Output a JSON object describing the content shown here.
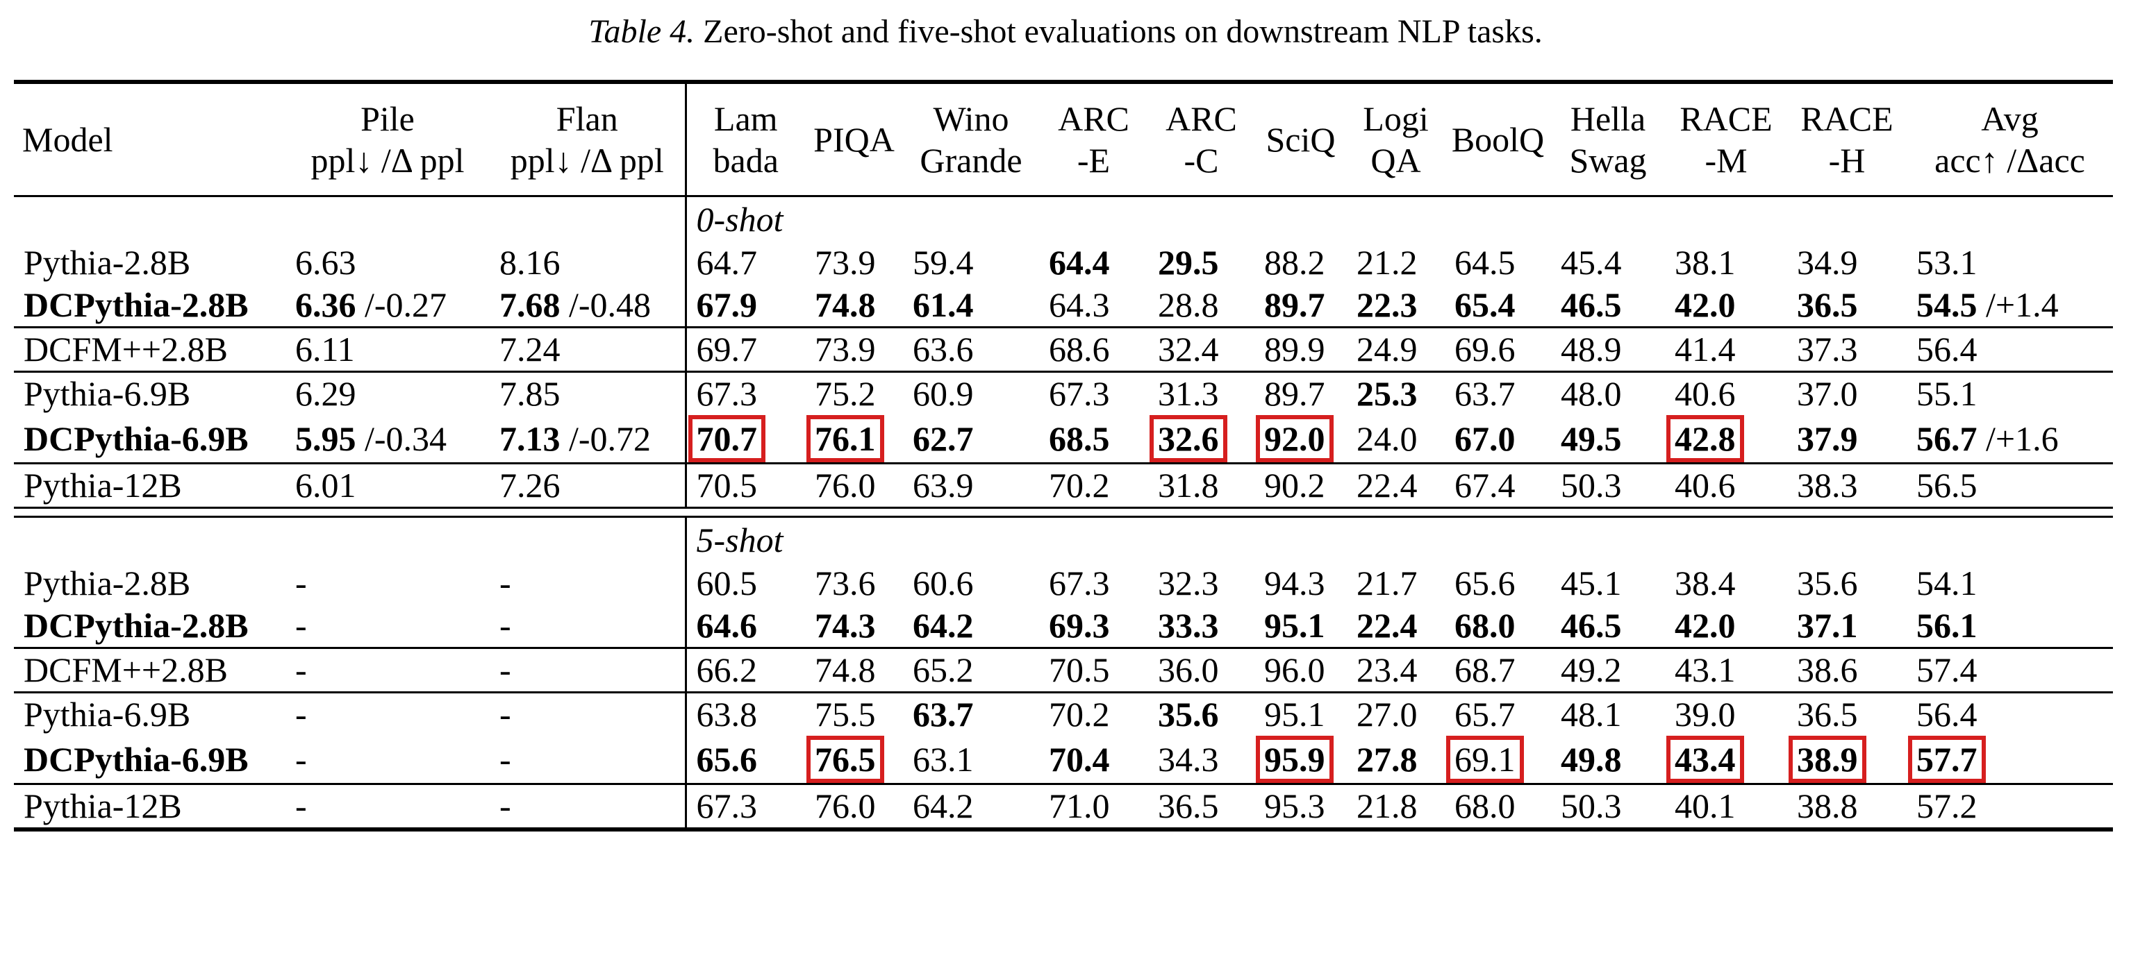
{
  "caption": {
    "label": "Table 4.",
    "text": "Zero-shot and five-shot evaluations on downstream NLP tasks."
  },
  "header": [
    {
      "lines": [
        "Model"
      ]
    },
    {
      "lines": [
        "Pile",
        "ppl↓ /Δ ppl"
      ]
    },
    {
      "lines": [
        "Flan",
        "ppl↓ /Δ ppl"
      ]
    },
    {
      "lines": [
        "Lam",
        "bada"
      ]
    },
    {
      "lines": [
        "PIQA"
      ]
    },
    {
      "lines": [
        "Wino",
        "Grande"
      ]
    },
    {
      "lines": [
        "ARC",
        "-E"
      ]
    },
    {
      "lines": [
        "ARC",
        "-C"
      ]
    },
    {
      "lines": [
        "SciQ"
      ]
    },
    {
      "lines": [
        "Logi",
        "QA"
      ]
    },
    {
      "lines": [
        "BoolQ"
      ]
    },
    {
      "lines": [
        "Hella",
        "Swag"
      ]
    },
    {
      "lines": [
        "RACE",
        "-M"
      ]
    },
    {
      "lines": [
        "RACE",
        "-H"
      ]
    },
    {
      "lines": [
        "Avg",
        "acc↑ /Δacc"
      ]
    }
  ],
  "sections": [
    {
      "label": "0-shot",
      "groups": [
        [
          {
            "model": "Pythia-2.8B",
            "model_bold": false,
            "cells": [
              "6.63",
              "8.16",
              "64.7",
              "73.9",
              "59.4",
              "64.4",
              "29.5",
              "88.2",
              "21.2",
              "64.5",
              "45.4",
              "38.1",
              "34.9",
              "53.1"
            ],
            "bold": [
              5,
              6
            ],
            "boxed": []
          },
          {
            "model": "DCPythia-2.8B",
            "model_bold": true,
            "cells": [
              {
                "main": "6.36",
                "delta": "/-0.27"
              },
              {
                "main": "7.68",
                "delta": "/-0.48"
              },
              "67.9",
              "74.8",
              "61.4",
              "64.3",
              "28.8",
              "89.7",
              "22.3",
              "65.4",
              "46.5",
              "42.0",
              "36.5",
              {
                "main": "54.5",
                "delta": "/+1.4"
              }
            ],
            "bold": [
              0,
              1,
              2,
              3,
              4,
              7,
              8,
              9,
              10,
              11,
              12,
              13
            ],
            "boxed": []
          }
        ],
        [
          {
            "model": "DCFM++2.8B",
            "model_bold": false,
            "cells": [
              "6.11",
              "7.24",
              "69.7",
              "73.9",
              "63.6",
              "68.6",
              "32.4",
              "89.9",
              "24.9",
              "69.6",
              "48.9",
              "41.4",
              "37.3",
              "56.4"
            ],
            "bold": [],
            "boxed": []
          }
        ],
        [
          {
            "model": "Pythia-6.9B",
            "model_bold": false,
            "cells": [
              "6.29",
              "7.85",
              "67.3",
              "75.2",
              "60.9",
              "67.3",
              "31.3",
              "89.7",
              "25.3",
              "63.7",
              "48.0",
              "40.6",
              "37.0",
              "55.1"
            ],
            "bold": [
              8
            ],
            "boxed": []
          },
          {
            "model": "DCPythia-6.9B",
            "model_bold": true,
            "cells": [
              {
                "main": "5.95",
                "delta": "/-0.34"
              },
              {
                "main": "7.13",
                "delta": "/-0.72"
              },
              "70.7",
              "76.1",
              "62.7",
              "68.5",
              "32.6",
              "92.0",
              "24.0",
              "67.0",
              "49.5",
              "42.8",
              "37.9",
              {
                "main": "56.7",
                "delta": "/+1.6"
              }
            ],
            "bold": [
              0,
              1,
              2,
              3,
              4,
              5,
              6,
              7,
              9,
              10,
              11,
              12,
              13
            ],
            "boxed": [
              2,
              3,
              6,
              7,
              11
            ]
          }
        ],
        [
          {
            "model": "Pythia-12B",
            "model_bold": false,
            "cells": [
              "6.01",
              "7.26",
              "70.5",
              "76.0",
              "63.9",
              "70.2",
              "31.8",
              "90.2",
              "22.4",
              "67.4",
              "50.3",
              "40.6",
              "38.3",
              "56.5"
            ],
            "bold": [],
            "boxed": []
          }
        ]
      ]
    },
    {
      "label": "5-shot",
      "groups": [
        [
          {
            "model": "Pythia-2.8B",
            "model_bold": false,
            "cells": [
              "-",
              "-",
              "60.5",
              "73.6",
              "60.6",
              "67.3",
              "32.3",
              "94.3",
              "21.7",
              "65.6",
              "45.1",
              "38.4",
              "35.6",
              "54.1"
            ],
            "bold": [],
            "boxed": []
          },
          {
            "model": "DCPythia-2.8B",
            "model_bold": true,
            "cells": [
              "-",
              "-",
              "64.6",
              "74.3",
              "64.2",
              "69.3",
              "33.3",
              "95.1",
              "22.4",
              "68.0",
              "46.5",
              "42.0",
              "37.1",
              "56.1"
            ],
            "bold": [
              2,
              3,
              4,
              5,
              6,
              7,
              8,
              9,
              10,
              11,
              12,
              13
            ],
            "boxed": []
          }
        ],
        [
          {
            "model": "DCFM++2.8B",
            "model_bold": false,
            "cells": [
              "-",
              "-",
              "66.2",
              "74.8",
              "65.2",
              "70.5",
              "36.0",
              "96.0",
              "23.4",
              "68.7",
              "49.2",
              "43.1",
              "38.6",
              "57.4"
            ],
            "bold": [],
            "boxed": []
          }
        ],
        [
          {
            "model": "Pythia-6.9B",
            "model_bold": false,
            "cells": [
              "-",
              "-",
              "63.8",
              "75.5",
              "63.7",
              "70.2",
              "35.6",
              "95.1",
              "27.0",
              "65.7",
              "48.1",
              "39.0",
              "36.5",
              "56.4"
            ],
            "bold": [
              4,
              6
            ],
            "boxed": []
          },
          {
            "model": "DCPythia-6.9B",
            "model_bold": true,
            "cells": [
              "-",
              "-",
              "65.6",
              "76.5",
              "63.1",
              "70.4",
              "34.3",
              "95.9",
              "27.8",
              "69.1",
              "49.8",
              "43.4",
              "38.9",
              "57.7"
            ],
            "bold": [
              2,
              3,
              5,
              7,
              8,
              10,
              11,
              12,
              13
            ],
            "boxed": [
              3,
              7,
              9,
              11,
              12,
              13
            ]
          }
        ],
        [
          {
            "model": "Pythia-12B",
            "model_bold": false,
            "cells": [
              "-",
              "-",
              "67.3",
              "76.0",
              "64.2",
              "71.0",
              "36.5",
              "95.3",
              "21.8",
              "68.0",
              "50.3",
              "40.1",
              "38.8",
              "57.2"
            ],
            "bold": [],
            "boxed": []
          }
        ]
      ]
    }
  ]
}
